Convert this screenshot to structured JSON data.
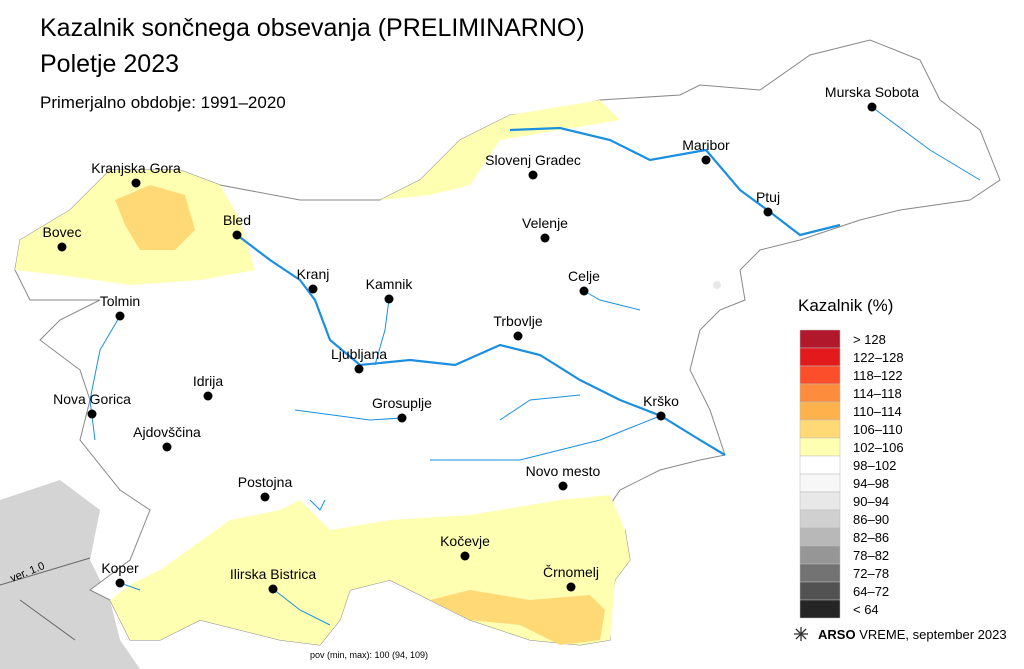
{
  "header": {
    "title": "Kazalnik sončnega obsevanja (PRELIMINARNO)",
    "subtitle": "Poletje 2023",
    "period": "Primerjalno obdobje: 1991–2020"
  },
  "cities": [
    "Murska Sobota",
    "Maribor",
    "Slovenj Gradec",
    "Ptuj",
    "Kranjska Gora",
    "Bled",
    "Bovec",
    "Velenje",
    "Celje",
    "Kranj",
    "Kamnik",
    "Tolmin",
    "Trbovlje",
    "Ljubljana",
    "Idrija",
    "Nova Gorica",
    "Grosuplje",
    "Krško",
    "Ajdovščina",
    "Novo mesto",
    "Postojna",
    "Kočevje",
    "Črnomelj",
    "Koper",
    "Ilirska Bistrica"
  ],
  "legend": {
    "title": "Kazalnik (%)",
    "items": [
      {
        "label": "> 128",
        "color": "#b2182b"
      },
      {
        "label": "122–128",
        "color": "#e31a1c"
      },
      {
        "label": "118–122",
        "color": "#fc4e2a"
      },
      {
        "label": "114–118",
        "color": "#fd8d3c"
      },
      {
        "label": "110–114",
        "color": "#feb24c"
      },
      {
        "label": "106–110",
        "color": "#fed976"
      },
      {
        "label": "102–106",
        "color": "#ffffb2"
      },
      {
        "label": "98–102",
        "color": "#ffffff"
      },
      {
        "label": "94–98",
        "color": "#f7f7f7"
      },
      {
        "label": "90–94",
        "color": "#e8e8e8"
      },
      {
        "label": "86–90",
        "color": "#d0d0d0"
      },
      {
        "label": "82–86",
        "color": "#b8b8b8"
      },
      {
        "label": "78–82",
        "color": "#969696"
      },
      {
        "label": "72–78",
        "color": "#737373"
      },
      {
        "label": "64–72",
        "color": "#525252"
      },
      {
        "label": "< 64",
        "color": "#252525"
      }
    ]
  },
  "footer": {
    "stats": "pov (min, max): 100 (94, 109)",
    "brand": "ARSO",
    "text": "VREME, september 2023",
    "version": "ver. 1.0"
  }
}
